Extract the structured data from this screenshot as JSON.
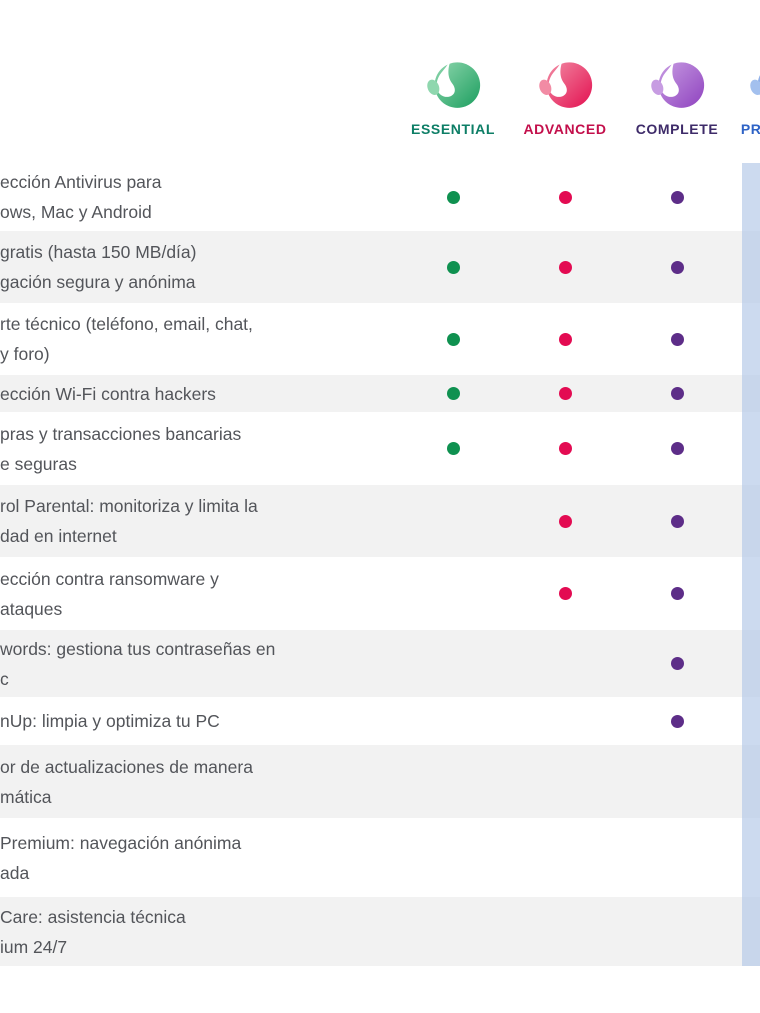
{
  "plans": [
    {
      "id": "essential",
      "label": "ESSENTIAL",
      "label_color": "#0d7e66",
      "logo_light": "#8fd7ae",
      "logo_dark": "#1c9e5f",
      "dot_color": "#0f9150"
    },
    {
      "id": "advanced",
      "label": "ADVANCED",
      "label_color": "#c30f4b",
      "logo_light": "#f28ba4",
      "logo_dark": "#e31050",
      "dot_color": "#e30b52"
    },
    {
      "id": "complete",
      "label": "COMPLETE",
      "label_color": "#3e2b69",
      "logo_light": "#c79ce2",
      "logo_dark": "#8f42bf",
      "dot_color": "#5d2d88"
    },
    {
      "id": "premium",
      "label": "PREMIUM",
      "label_color": "#2e63c6",
      "logo_light": "#a3c0ee",
      "logo_dark": "#3f70d4",
      "dot_color": "#2e63c6"
    }
  ],
  "features": [
    {
      "lines": [
        "ección Antivirus para",
        "ows, Mac y Android"
      ],
      "included": [
        "essential",
        "advanced",
        "complete"
      ]
    },
    {
      "lines": [
        "gratis (hasta 150 MB/día)",
        "gación segura y anónima"
      ],
      "included": [
        "essential",
        "advanced",
        "complete"
      ]
    },
    {
      "lines": [
        "rte técnico (teléfono, email, chat,",
        "y foro)"
      ],
      "included": [
        "essential",
        "advanced",
        "complete"
      ]
    },
    {
      "lines": [
        "ección Wi-Fi contra hackers"
      ],
      "included": [
        "essential",
        "advanced",
        "complete"
      ]
    },
    {
      "lines": [
        "pras y transacciones bancarias",
        "e seguras"
      ],
      "included": [
        "essential",
        "advanced",
        "complete"
      ]
    },
    {
      "lines": [
        "rol Parental: monitoriza y limita la",
        "dad en internet"
      ],
      "included": [
        "advanced",
        "complete"
      ]
    },
    {
      "lines": [
        "ección contra ransomware y",
        "ataques"
      ],
      "included": [
        "advanced",
        "complete"
      ]
    },
    {
      "lines": [
        "words: gestiona tus contraseñas en",
        "c"
      ],
      "included": [
        "complete"
      ]
    },
    {
      "lines": [
        "nUp: limpia y optimiza tu PC"
      ],
      "included": [
        "complete"
      ]
    },
    {
      "lines": [
        "or de actualizaciones de manera",
        "mática"
      ],
      "included": []
    },
    {
      "lines": [
        "Premium: navegación anónima",
        "ada"
      ],
      "included": []
    },
    {
      "lines": [
        "Care: asistencia técnica",
        "ium 24/7"
      ],
      "included": []
    }
  ],
  "colors": {
    "row_alt": "#f2f2f2",
    "feature_text": "#53555a",
    "premium_band": "#b4c9e8",
    "background": "#ffffff"
  }
}
